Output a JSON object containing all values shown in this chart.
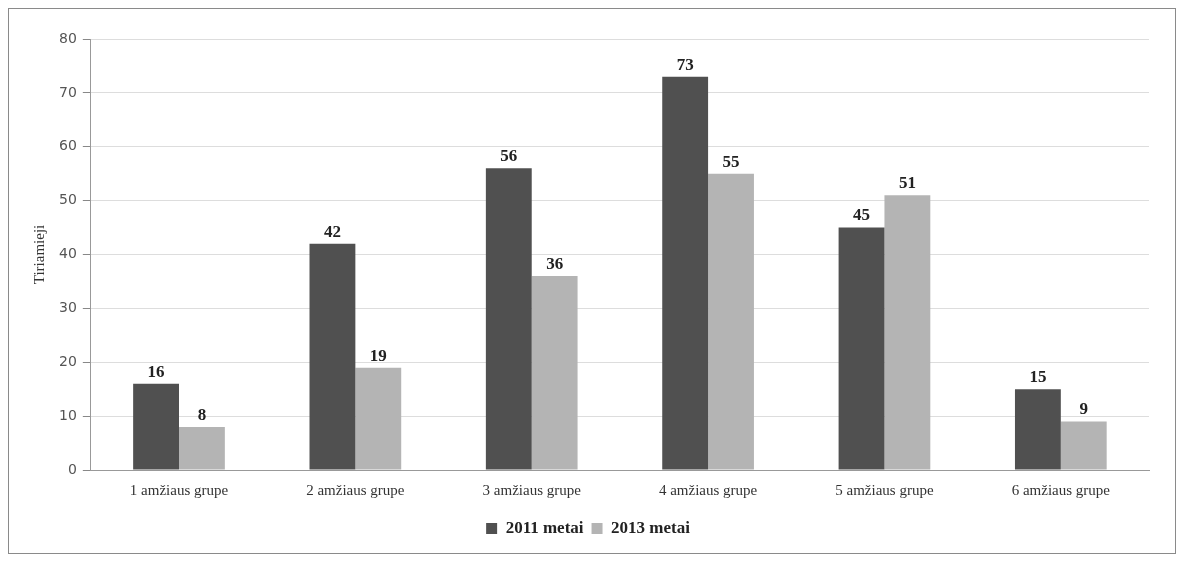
{
  "chart_data": {
    "type": "bar",
    "ylabel": "Tiriamieji",
    "categories": [
      "1 amžiaus grupe",
      "2 amžiaus grupe",
      "3 amžiaus grupe",
      "4 amžiaus grupe",
      "5 amžiaus grupe",
      "6 amžiaus grupe"
    ],
    "series": [
      {
        "name": "2011 metai",
        "color": "#505050",
        "values": [
          16,
          42,
          56,
          73,
          45,
          15
        ]
      },
      {
        "name": "2013 metai",
        "color": "#b4b4b4",
        "values": [
          8,
          19,
          36,
          55,
          51,
          9
        ]
      }
    ],
    "ylim": [
      0,
      80
    ],
    "yticks": [
      0,
      10,
      20,
      30,
      40,
      50,
      60,
      70,
      80
    ],
    "grid": "y",
    "legend": "bottom",
    "data_labels": true
  }
}
